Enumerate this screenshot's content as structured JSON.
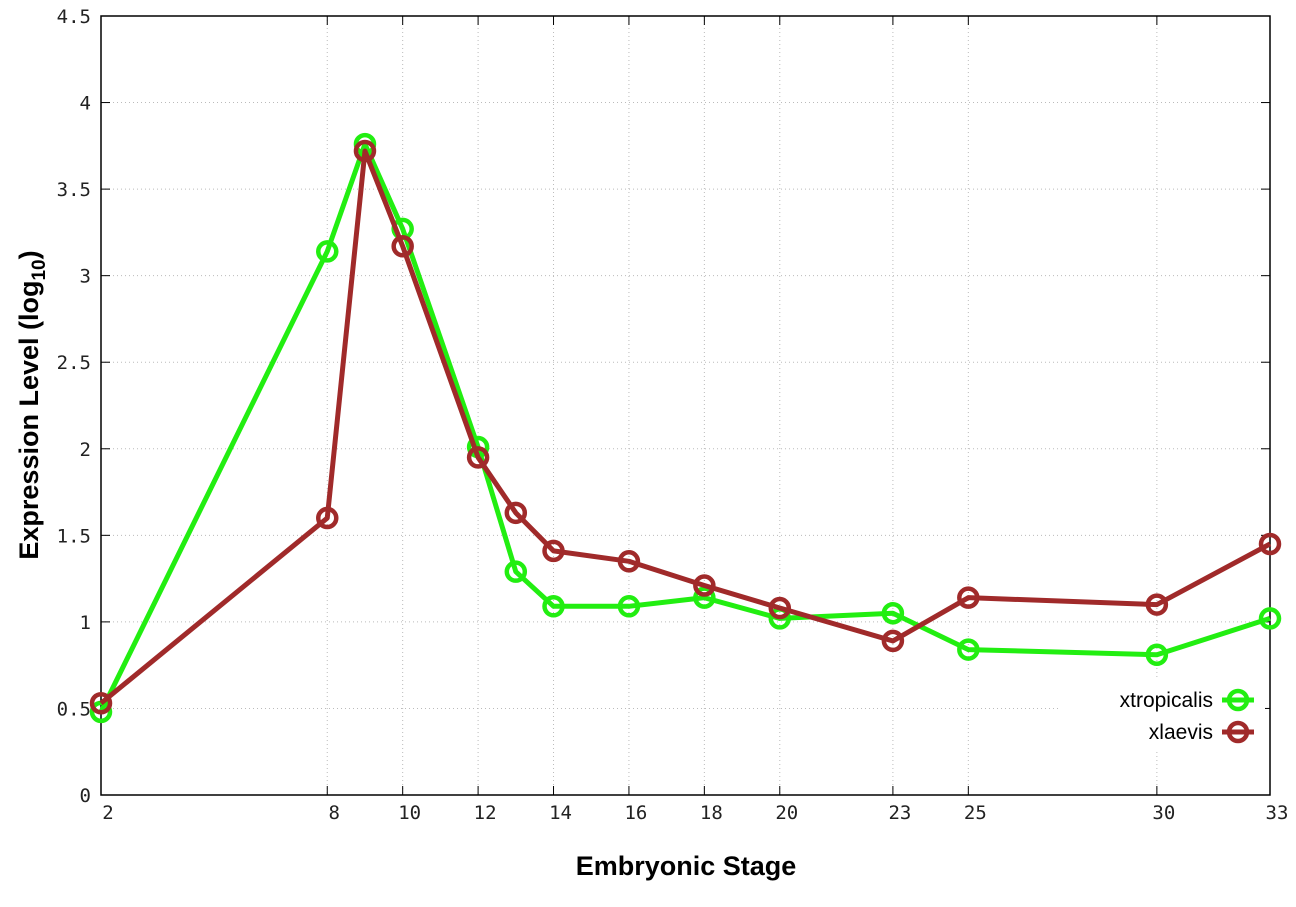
{
  "chart_data": {
    "type": "line",
    "title": "",
    "xlabel": "Embryonic Stage",
    "ylabel": "Expression Level (log",
    "ylabel_subscript": "10",
    "ylabel_close": ")",
    "xlim": [
      2,
      33
    ],
    "ylim": [
      0,
      4.5
    ],
    "grid": true,
    "legend_position": "bottom-right",
    "x_ticks": [
      2,
      8,
      10,
      12,
      14,
      16,
      18,
      20,
      23,
      25,
      30,
      33
    ],
    "y_ticks": [
      "0",
      "0.5",
      "1",
      "1.5",
      "2",
      "2.5",
      "3",
      "3.5",
      "4",
      "4.5"
    ],
    "x": [
      2,
      8,
      9,
      10,
      12,
      13,
      14,
      16,
      18,
      20,
      23,
      25,
      30,
      33
    ],
    "series": [
      {
        "name": "xtropicalis",
        "color": "#22ee11",
        "values": [
          0.48,
          3.14,
          3.76,
          3.27,
          2.01,
          1.29,
          1.09,
          1.09,
          1.14,
          1.02,
          1.05,
          0.84,
          0.81,
          1.02
        ]
      },
      {
        "name": "xlaevis",
        "color": "#a02a2a",
        "values": [
          0.53,
          1.6,
          3.72,
          3.17,
          1.95,
          1.63,
          1.41,
          1.35,
          1.21,
          1.08,
          0.89,
          1.14,
          1.1,
          1.45
        ]
      }
    ]
  }
}
